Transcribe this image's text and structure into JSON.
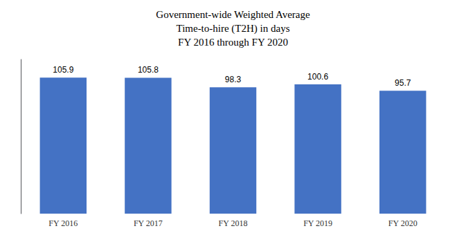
{
  "chart_data": {
    "type": "bar",
    "title": "Government-wide Weighted Average\nTime-to-hire (T2H) in days\nFY 2016 through FY 2020",
    "categories": [
      "FY 2016",
      "FY 2017",
      "FY 2018",
      "FY 2019",
      "FY 2020"
    ],
    "values": [
      105.9,
      105.8,
      98.3,
      100.6,
      95.7
    ],
    "color": "#4472C4",
    "ylim": [
      0,
      120
    ],
    "grid": false,
    "data_labels": true,
    "tick_labels": "x"
  }
}
